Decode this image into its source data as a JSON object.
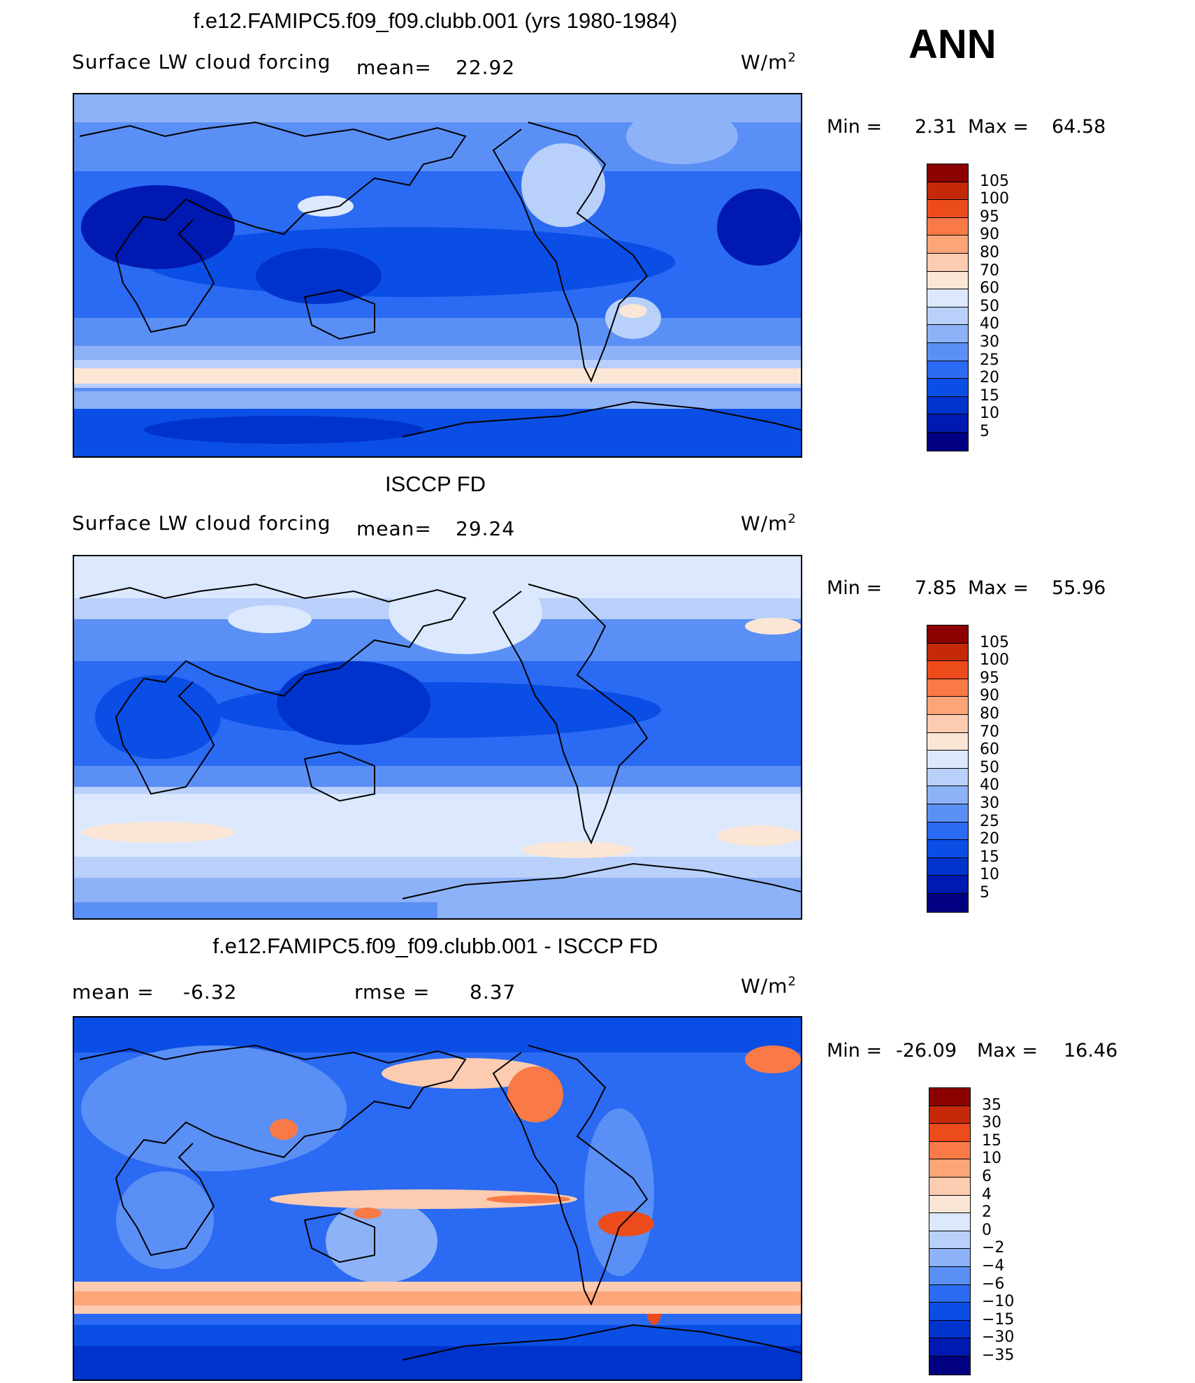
{
  "season": "ANN",
  "panels": [
    {
      "title": "f.e12.FAMIPC5.f09_f09.clubb.001 (yrs 1980-1984)",
      "left_label": "Surface LW cloud forcing",
      "mid_label": "mean=",
      "mid_value": "22.92",
      "units": "W/m",
      "units_sup": "2",
      "min_label": "Min =",
      "min_value": "2.31",
      "max_label": "Max =",
      "max_value": "64.58"
    },
    {
      "title": "ISCCP FD",
      "left_label": "Surface LW cloud forcing",
      "mid_label": "mean=",
      "mid_value": "29.24",
      "units": "W/m",
      "units_sup": "2",
      "min_label": "Min =",
      "min_value": "7.85",
      "max_label": "Max =",
      "max_value": "55.96"
    },
    {
      "title": "f.e12.FAMIPC5.f09_f09.clubb.001 - ISCCP FD",
      "left_label": "mean =",
      "left_value": "-6.32",
      "mid_label": "rmse =",
      "mid_value": "8.37",
      "units": "W/m",
      "units_sup": "2",
      "min_label": "Min =",
      "min_value": "-26.09",
      "max_label": "Max =",
      "max_value": "16.46"
    }
  ],
  "chart_data": [
    {
      "type": "heatmap",
      "title": "f.e12.FAMIPC5.f09_f09.clubb.001 (yrs 1980-1984)",
      "variable": "Surface LW cloud forcing",
      "units": "W/m2",
      "mean": 22.92,
      "min": 2.31,
      "max": 64.58,
      "colorbar_levels": [
        5,
        10,
        15,
        20,
        25,
        30,
        40,
        50,
        60,
        70,
        80,
        90,
        95,
        100,
        105
      ],
      "colors": [
        "#000080",
        "#0019b0",
        "#0033cc",
        "#0a4ee6",
        "#2b6af2",
        "#5a8ff5",
        "#8db2f8",
        "#b8d0fa",
        "#dbe8fd",
        "#fbe6d6",
        "#fccbb0",
        "#fba579",
        "#f97a47",
        "#ec4b1b",
        "#c42a0a",
        "#8b0000"
      ]
    },
    {
      "type": "heatmap",
      "title": "ISCCP FD",
      "variable": "Surface LW cloud forcing",
      "units": "W/m2",
      "mean": 29.24,
      "min": 7.85,
      "max": 55.96,
      "colorbar_levels": [
        5,
        10,
        15,
        20,
        25,
        30,
        40,
        50,
        60,
        70,
        80,
        90,
        95,
        100,
        105
      ],
      "colors": [
        "#000080",
        "#0019b0",
        "#0033cc",
        "#0a4ee6",
        "#2b6af2",
        "#5a8ff5",
        "#8db2f8",
        "#b8d0fa",
        "#dbe8fd",
        "#fbe6d6",
        "#fccbb0",
        "#fba579",
        "#f97a47",
        "#ec4b1b",
        "#c42a0a",
        "#8b0000"
      ]
    },
    {
      "type": "heatmap",
      "title": "f.e12.FAMIPC5.f09_f09.clubb.001 - ISCCP FD",
      "units": "W/m2",
      "mean": -6.32,
      "rmse": 8.37,
      "min": -26.09,
      "max": 16.46,
      "colorbar_levels": [
        -35,
        -30,
        -15,
        -10,
        -6,
        -4,
        -2,
        0,
        2,
        4,
        6,
        10,
        15,
        30,
        35
      ],
      "colors": [
        "#000080",
        "#0019b0",
        "#0033cc",
        "#0a4ee6",
        "#2b6af2",
        "#5a8ff5",
        "#8db2f8",
        "#b8d0fa",
        "#dbe8fd",
        "#fbe6d6",
        "#fccbb0",
        "#fba579",
        "#f97a47",
        "#ec4b1b",
        "#c42a0a",
        "#8b0000"
      ]
    }
  ]
}
